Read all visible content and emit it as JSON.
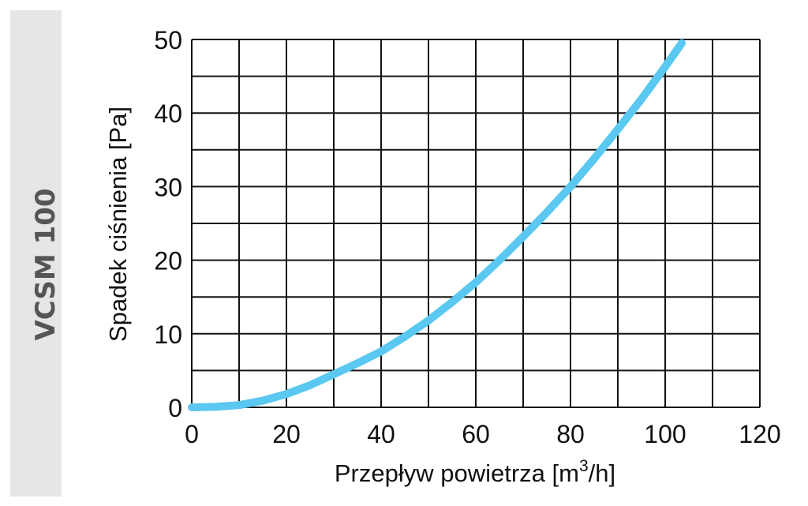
{
  "side_label": "VCSM 100",
  "colors": {
    "curve": "#5ac8f0",
    "grid": "#111111",
    "band": "#e6e6e6",
    "band_text": "#555555"
  },
  "chart_data": {
    "type": "line",
    "xlabel_main": "Przepływ powietrza [m",
    "xlabel_sup": "3",
    "xlabel_end": "/h]",
    "ylabel": "Spadek ciśnienia [Pa]",
    "xlim": [
      0,
      120
    ],
    "ylim": [
      0,
      50
    ],
    "x_ticks": [
      0,
      20,
      40,
      60,
      80,
      100,
      120
    ],
    "y_ticks": [
      0,
      10,
      20,
      30,
      40,
      50
    ],
    "x_grid_step": 10,
    "y_grid_step": 5,
    "grid": true,
    "series": [
      {
        "x": [
          0,
          5,
          10,
          15,
          20,
          25,
          30,
          35,
          40,
          45,
          50,
          55,
          60,
          65,
          70,
          75,
          80,
          85,
          90,
          95,
          100,
          103.5
        ],
        "y": [
          0,
          0.06,
          0.3,
          0.9,
          1.8,
          3.0,
          4.5,
          6.0,
          7.6,
          9.6,
          11.8,
          14.3,
          17.0,
          20.0,
          23.2,
          26.5,
          30.0,
          33.8,
          37.8,
          41.9,
          46.3,
          49.5
        ]
      }
    ]
  }
}
